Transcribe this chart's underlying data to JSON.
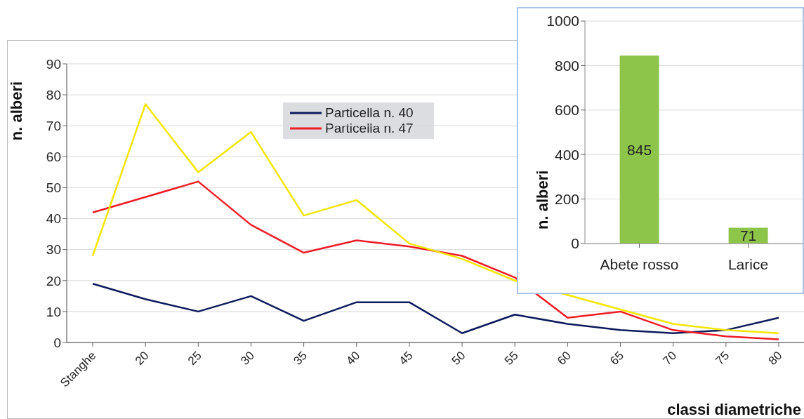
{
  "chart_data": [
    {
      "type": "line",
      "xlabel": "classi diametriche",
      "ylabel": "n. alberi",
      "categories": [
        "Stanghe",
        "20",
        "25",
        "30",
        "35",
        "40",
        "45",
        "50",
        "55",
        "60",
        "65",
        "70",
        "75",
        "80"
      ],
      "series": [
        {
          "name": "Particella n. 40",
          "color": "#0d1a5c",
          "values": [
            19,
            14,
            10,
            15,
            7,
            13,
            13,
            3,
            9,
            6,
            4,
            3,
            4,
            8
          ]
        },
        {
          "name": "Particella n. 47",
          "color": "#ee1c25",
          "values": [
            42,
            47,
            52,
            38,
            29,
            33,
            31,
            28,
            21,
            8,
            10,
            4,
            2,
            1
          ]
        },
        {
          "color": "#f2e600",
          "values": [
            28,
            77,
            55,
            68,
            41,
            46,
            32,
            27,
            20,
            null,
            null,
            6,
            4,
            3
          ]
        }
      ],
      "ylim": [
        0,
        90
      ],
      "yticks": [
        0,
        10,
        20,
        30,
        40,
        50,
        60,
        70,
        80,
        90
      ],
      "grid": "y",
      "legend": "top",
      "marker": "none",
      "line_style": "solid"
    },
    {
      "type": "bar",
      "ylabel": "n. alberi",
      "categories": [
        "Abete rosso",
        "Larice"
      ],
      "values": [
        845,
        71
      ],
      "color": "#8dc54b",
      "ylim": [
        0,
        1000
      ],
      "yticks": [
        0,
        200,
        400,
        600,
        800,
        1000
      ],
      "grid": "y",
      "data_labels": true
    }
  ]
}
